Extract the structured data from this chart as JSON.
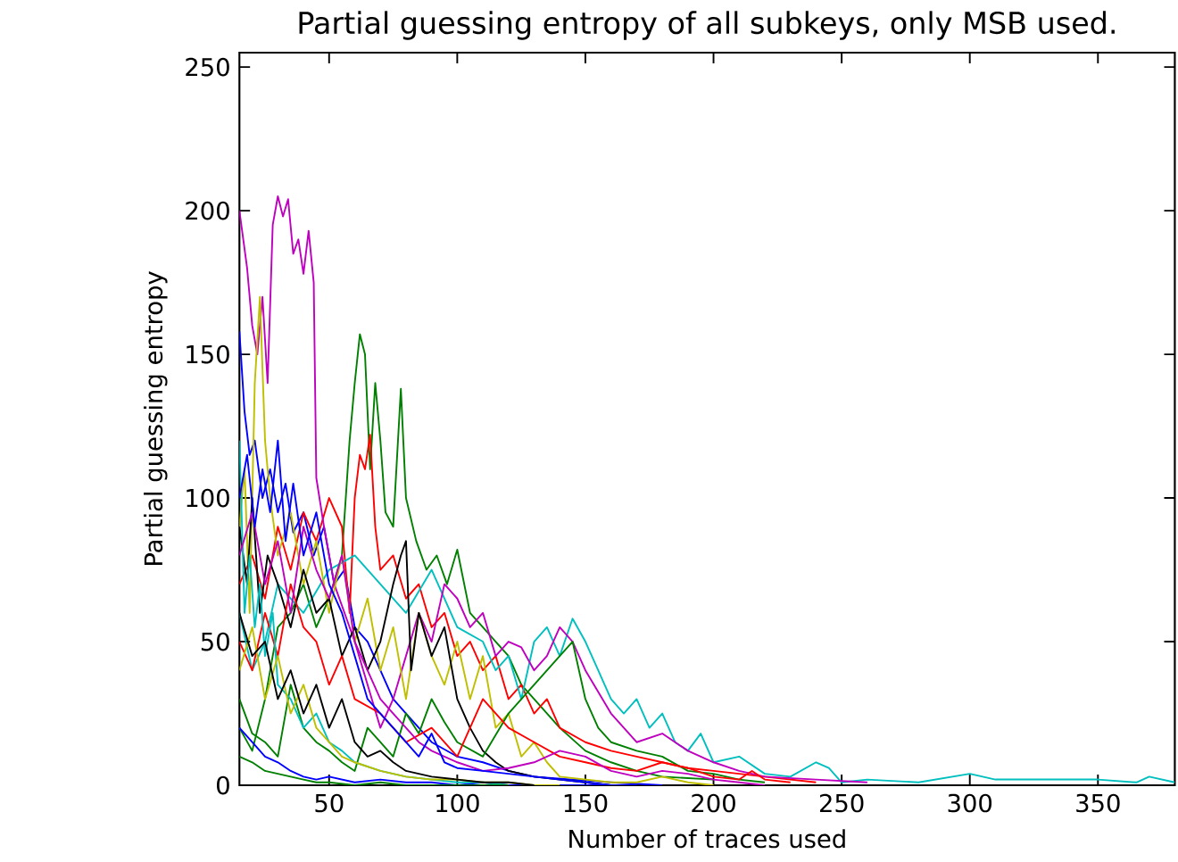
{
  "chart_data": {
    "type": "line",
    "title": "Partial guessing entropy of all subkeys, only MSB used.",
    "xlabel": "Number of traces used",
    "ylabel": "Partial guessing entropy",
    "xlim": [
      15,
      380
    ],
    "ylim": [
      0,
      255
    ],
    "xticks": [
      50,
      100,
      150,
      200,
      250,
      300,
      350
    ],
    "yticks": [
      0,
      50,
      100,
      150,
      200,
      250
    ],
    "grid": false,
    "marker": "none",
    "line_style": "solid",
    "series": [
      {
        "color": "#0000ff",
        "x": [
          15,
          17,
          19,
          21,
          24,
          27,
          30,
          33,
          36,
          40,
          44,
          48,
          52,
          56,
          60,
          65,
          70,
          75,
          80,
          90,
          100,
          110,
          120,
          130,
          145,
          160,
          180
        ],
        "values": [
          158,
          130,
          115,
          120,
          100,
          110,
          95,
          105,
          88,
          95,
          80,
          90,
          70,
          75,
          55,
          50,
          40,
          30,
          25,
          15,
          10,
          8,
          5,
          3,
          2,
          1,
          0
        ]
      },
      {
        "color": "#008000",
        "x": [
          15,
          20,
          25,
          30,
          35,
          40,
          45,
          50,
          55,
          58,
          60,
          62,
          64,
          66,
          68,
          70,
          72,
          75,
          78,
          80,
          84,
          88,
          92,
          96,
          100,
          105,
          110,
          115,
          120,
          125,
          130,
          140,
          150,
          160,
          170,
          180,
          200
        ],
        "values": [
          20,
          12,
          30,
          55,
          60,
          70,
          55,
          65,
          80,
          120,
          140,
          157,
          150,
          110,
          140,
          120,
          95,
          90,
          138,
          100,
          85,
          75,
          80,
          70,
          82,
          60,
          55,
          50,
          45,
          35,
          30,
          20,
          12,
          8,
          5,
          3,
          2
        ]
      },
      {
        "color": "#ff0000",
        "x": [
          15,
          20,
          25,
          30,
          35,
          40,
          45,
          50,
          55,
          58,
          60,
          62,
          64,
          66,
          68,
          70,
          75,
          80,
          85,
          90,
          95,
          100,
          105,
          110,
          115,
          120,
          125,
          130,
          135,
          140,
          150,
          160,
          170,
          180,
          190,
          200,
          220,
          240
        ],
        "values": [
          70,
          80,
          65,
          90,
          75,
          95,
          85,
          100,
          90,
          60,
          100,
          115,
          110,
          122,
          90,
          75,
          80,
          65,
          70,
          55,
          60,
          45,
          50,
          40,
          45,
          30,
          35,
          25,
          30,
          20,
          15,
          12,
          10,
          8,
          6,
          5,
          3,
          1
        ]
      },
      {
        "color": "#00bfbf",
        "x": [
          15,
          20,
          25,
          30,
          40,
          50,
          60,
          70,
          80,
          90,
          100,
          110,
          115,
          120,
          125,
          130,
          135,
          140,
          145,
          150,
          155,
          160,
          165,
          170,
          175,
          180,
          185,
          190,
          195,
          200,
          210,
          220,
          230,
          240,
          245,
          250,
          260,
          280,
          300,
          310,
          330,
          350,
          365,
          370,
          380
        ],
        "values": [
          60,
          40,
          50,
          70,
          60,
          75,
          80,
          70,
          60,
          75,
          55,
          50,
          40,
          45,
          30,
          50,
          55,
          45,
          58,
          50,
          40,
          30,
          25,
          30,
          20,
          25,
          15,
          12,
          18,
          8,
          10,
          4,
          3,
          8,
          6,
          1,
          2,
          1,
          4,
          2,
          2,
          2,
          1,
          3,
          1
        ]
      },
      {
        "color": "#bf00bf",
        "x": [
          15,
          18,
          20,
          22,
          24,
          26,
          28,
          30,
          32,
          34,
          36,
          38,
          40,
          42,
          44,
          45,
          48,
          52,
          56,
          60,
          65,
          70,
          75,
          80,
          85,
          90,
          95,
          100,
          105,
          110,
          115,
          120,
          125,
          130,
          135,
          140,
          145,
          150,
          160,
          170,
          180,
          190,
          200,
          210,
          220,
          240,
          260
        ],
        "values": [
          200,
          180,
          160,
          150,
          170,
          140,
          195,
          205,
          198,
          204,
          185,
          190,
          178,
          193,
          175,
          107,
          90,
          70,
          60,
          50,
          35,
          20,
          30,
          45,
          60,
          50,
          70,
          65,
          55,
          60,
          45,
          50,
          48,
          40,
          45,
          55,
          50,
          40,
          25,
          15,
          18,
          12,
          8,
          5,
          3,
          2,
          1
        ]
      },
      {
        "color": "#bfbf00",
        "x": [
          15,
          17,
          19,
          21,
          23,
          25,
          27,
          30,
          35,
          40,
          45,
          50,
          55,
          60,
          65,
          70,
          75,
          80,
          85,
          90,
          95,
          100,
          105,
          110,
          115,
          120,
          125,
          130,
          135,
          140,
          150,
          160,
          170,
          180,
          190,
          200
        ],
        "values": [
          90,
          110,
          60,
          140,
          170,
          120,
          100,
          80,
          95,
          70,
          85,
          60,
          80,
          50,
          65,
          40,
          55,
          30,
          60,
          45,
          35,
          50,
          30,
          45,
          20,
          25,
          10,
          15,
          8,
          3,
          2,
          1,
          1,
          3,
          1,
          0
        ]
      },
      {
        "color": "#000000",
        "x": [
          15,
          18,
          20,
          23,
          26,
          30,
          35,
          40,
          45,
          50,
          55,
          60,
          65,
          70,
          75,
          78,
          80,
          82,
          85,
          90,
          95,
          100,
          105,
          110,
          115,
          120,
          130,
          140,
          150,
          160
        ],
        "values": [
          90,
          70,
          100,
          60,
          80,
          70,
          55,
          75,
          60,
          65,
          45,
          55,
          40,
          50,
          70,
          80,
          85,
          40,
          60,
          45,
          55,
          30,
          20,
          12,
          8,
          5,
          3,
          2,
          1,
          0
        ]
      },
      {
        "color": "#0000ff",
        "x": [
          15,
          20,
          25,
          30,
          35,
          40,
          45,
          50,
          60,
          70,
          80,
          90,
          100,
          110,
          120,
          130,
          150,
          170
        ],
        "values": [
          20,
          15,
          10,
          8,
          5,
          3,
          2,
          3,
          1,
          2,
          1,
          1,
          0,
          1,
          0,
          0,
          0,
          0
        ]
      },
      {
        "color": "#008000",
        "x": [
          15,
          20,
          25,
          30,
          35,
          40,
          45,
          50,
          55,
          60,
          65,
          70,
          75,
          80,
          85,
          90,
          95,
          100,
          110,
          120,
          130,
          140,
          145,
          150,
          155,
          160,
          170,
          180,
          190,
          200,
          210,
          220
        ],
        "values": [
          30,
          18,
          15,
          10,
          35,
          20,
          15,
          12,
          8,
          5,
          20,
          15,
          10,
          25,
          18,
          30,
          22,
          15,
          10,
          25,
          35,
          45,
          50,
          30,
          20,
          15,
          12,
          10,
          5,
          4,
          2,
          1
        ]
      },
      {
        "color": "#ff0000",
        "x": [
          15,
          20,
          25,
          30,
          35,
          40,
          45,
          50,
          55,
          60,
          70,
          80,
          90,
          100,
          110,
          120,
          130,
          140,
          150,
          160,
          170,
          180,
          190,
          200,
          210,
          215,
          220,
          230
        ],
        "values": [
          50,
          40,
          60,
          45,
          70,
          55,
          50,
          35,
          45,
          30,
          25,
          15,
          20,
          10,
          30,
          20,
          15,
          10,
          8,
          6,
          5,
          8,
          6,
          3,
          2,
          5,
          2,
          1
        ]
      },
      {
        "color": "#00bfbf",
        "x": [
          15,
          17,
          19,
          21,
          23,
          25,
          28,
          30,
          35,
          40,
          45,
          50,
          55,
          60,
          70,
          80,
          90,
          100,
          110,
          120
        ],
        "values": [
          120,
          60,
          80,
          55,
          70,
          45,
          60,
          35,
          30,
          20,
          25,
          15,
          12,
          8,
          5,
          3,
          2,
          1,
          1,
          0
        ]
      },
      {
        "color": "#bf00bf",
        "x": [
          15,
          20,
          25,
          30,
          35,
          40,
          45,
          50,
          55,
          60,
          65,
          70,
          75,
          80,
          85,
          90,
          95,
          100,
          110,
          120,
          130,
          140,
          150,
          160,
          170,
          180,
          190,
          200,
          210,
          220
        ],
        "values": [
          80,
          95,
          70,
          85,
          60,
          90,
          75,
          65,
          80,
          50,
          40,
          30,
          25,
          20,
          15,
          12,
          10,
          8,
          5,
          6,
          8,
          12,
          10,
          5,
          3,
          5,
          4,
          2,
          1,
          0
        ]
      },
      {
        "color": "#bfbf00",
        "x": [
          15,
          20,
          25,
          30,
          35,
          40,
          45,
          50,
          55,
          60,
          70,
          80,
          90,
          100,
          110,
          120,
          130,
          140
        ],
        "values": [
          40,
          55,
          30,
          45,
          25,
          35,
          20,
          15,
          10,
          8,
          5,
          3,
          2,
          2,
          1,
          1,
          0,
          0
        ]
      },
      {
        "color": "#000000",
        "x": [
          15,
          20,
          25,
          30,
          35,
          40,
          45,
          50,
          55,
          60,
          65,
          70,
          75,
          80,
          90,
          100,
          110,
          120,
          130
        ],
        "values": [
          60,
          45,
          50,
          30,
          40,
          25,
          35,
          20,
          30,
          15,
          10,
          12,
          8,
          5,
          3,
          2,
          1,
          1,
          0
        ]
      },
      {
        "color": "#0000ff",
        "x": [
          15,
          18,
          21,
          24,
          27,
          30,
          33,
          36,
          40,
          45,
          50,
          55,
          60,
          65,
          70,
          75,
          80,
          85,
          90,
          95,
          100,
          110,
          120,
          130,
          140,
          150,
          160
        ],
        "values": [
          100,
          115,
          90,
          110,
          95,
          120,
          85,
          105,
          80,
          95,
          70,
          60,
          45,
          30,
          25,
          20,
          15,
          10,
          18,
          8,
          6,
          5,
          4,
          3,
          2,
          1,
          0
        ]
      },
      {
        "color": "#008000",
        "x": [
          15,
          20,
          25,
          30,
          35,
          40,
          45,
          50,
          60,
          70,
          80,
          90,
          100,
          110,
          120
        ],
        "values": [
          10,
          8,
          5,
          4,
          3,
          2,
          1,
          1,
          0,
          1,
          0,
          0,
          0,
          0,
          0
        ]
      }
    ]
  }
}
